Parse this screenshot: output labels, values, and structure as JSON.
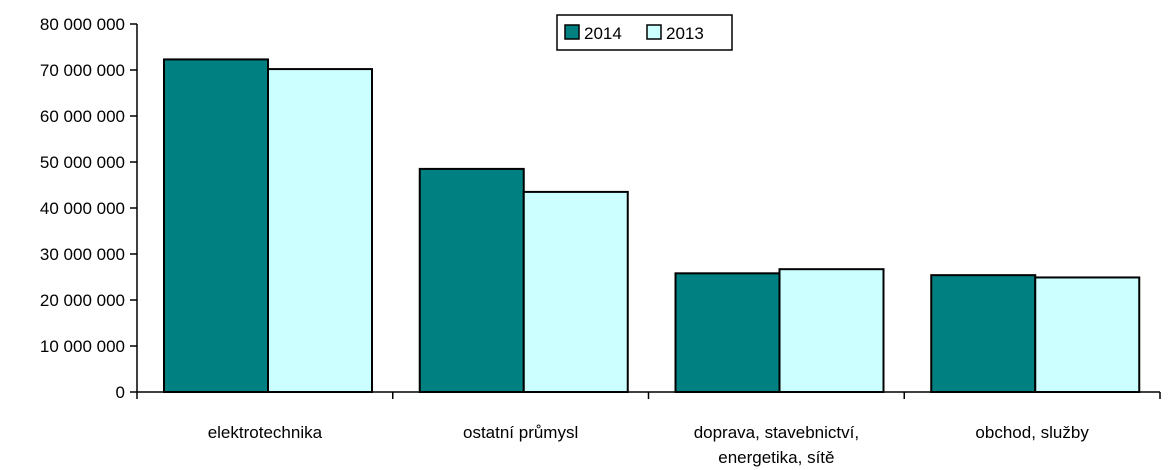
{
  "chart_data": {
    "type": "bar",
    "categories": [
      [
        "elektrotechnika"
      ],
      [
        "ostatní průmysl"
      ],
      [
        "doprava, stavebnictví,",
        "energetika, sítě"
      ],
      [
        "obchod, služby"
      ]
    ],
    "series": [
      {
        "name": "2014",
        "color": "#008080",
        "values": [
          72300000,
          48500000,
          25800000,
          25400000
        ]
      },
      {
        "name": "2013",
        "color": "#ccffff",
        "values": [
          70200000,
          43500000,
          26700000,
          24900000
        ]
      }
    ],
    "ylim": [
      0,
      80000000
    ],
    "yticks": [
      0,
      10000000,
      20000000,
      30000000,
      40000000,
      50000000,
      60000000,
      70000000,
      80000000
    ],
    "ytick_labels": [
      "0",
      "10 000 000",
      "20 000 000",
      "30 000 000",
      "40 000 000",
      "50 000 000",
      "60 000 000",
      "70 000 000",
      "80 000 000"
    ],
    "legend_position": "top-center",
    "grid": false,
    "title": "",
    "xlabel": "",
    "ylabel": ""
  }
}
